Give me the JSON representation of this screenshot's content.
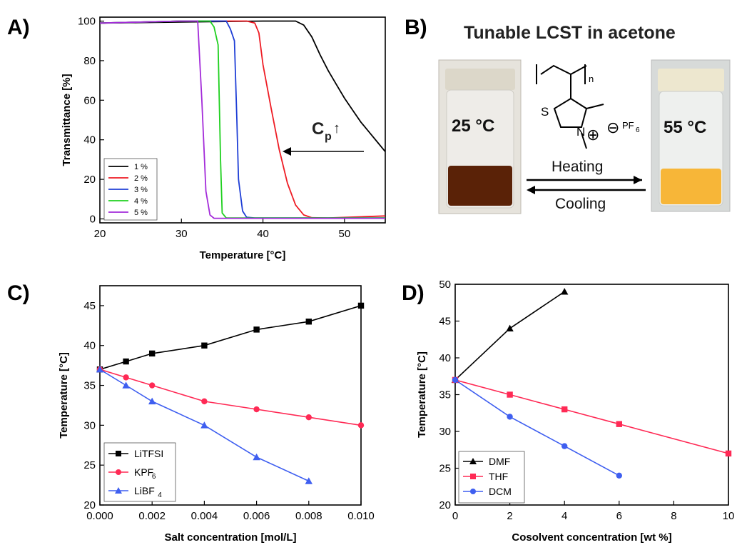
{
  "panels": {
    "a_label": "A)",
    "b_label": "B)",
    "c_label": "C)",
    "d_label": "D)"
  },
  "panel_b": {
    "title": "Tunable LCST in acetone",
    "vial_left_temp": "25 °C",
    "vial_right_temp": "55 °C",
    "heating": "Heating",
    "cooling": "Cooling",
    "chem_s": "S",
    "chem_n": "N",
    "chem_plus": "⊕",
    "chem_minus": "⊖",
    "chem_pf": "PF",
    "chem_pf_sub": "6",
    "chem_n_sub": "n",
    "vial_left_liquid": "#5a2207",
    "vial_right_liquid": "#f7b638"
  },
  "chart_data": [
    {
      "id": "A",
      "type": "line",
      "xlabel": "Temperature [°C]",
      "ylabel": "Transmittance [%]",
      "xlim": [
        20,
        55
      ],
      "ylim": [
        -2,
        102
      ],
      "xticks": [
        20,
        30,
        40,
        50
      ],
      "yticks": [
        0,
        20,
        40,
        60,
        80,
        100
      ],
      "annotation": {
        "text": "C",
        "sub": "p",
        "arrow": "↑"
      },
      "series": [
        {
          "name": "1 %",
          "color": "#000000",
          "points": [
            [
              20,
              99
            ],
            [
              30,
              99.5
            ],
            [
              40,
              100
            ],
            [
              44,
              100
            ],
            [
              45,
              98
            ],
            [
              46,
              92
            ],
            [
              47,
              83
            ],
            [
              48,
              75
            ],
            [
              49,
              68
            ],
            [
              50,
              61
            ],
            [
              51,
              55
            ],
            [
              52,
              49
            ],
            [
              53,
              44
            ],
            [
              54,
              39
            ],
            [
              55,
              34
            ]
          ]
        },
        {
          "name": "2 %",
          "color": "#ee1c24",
          "points": [
            [
              20,
              99
            ],
            [
              30,
              100
            ],
            [
              38,
              100
            ],
            [
              39,
              99
            ],
            [
              39.5,
              94
            ],
            [
              40,
              78
            ],
            [
              41,
              56
            ],
            [
              42,
              35
            ],
            [
              43,
              18
            ],
            [
              44,
              7
            ],
            [
              45,
              2
            ],
            [
              46,
              0.6
            ],
            [
              48,
              0.5
            ],
            [
              55,
              1.5
            ]
          ]
        },
        {
          "name": "3 %",
          "color": "#1f3fd6",
          "points": [
            [
              20,
              99
            ],
            [
              30,
              100
            ],
            [
              35.5,
              100
            ],
            [
              36,
              96
            ],
            [
              36.5,
              90
            ],
            [
              36.8,
              50
            ],
            [
              37,
              20
            ],
            [
              37.5,
              4
            ],
            [
              38,
              0.8
            ],
            [
              39,
              0.5
            ],
            [
              55,
              0.5
            ]
          ]
        },
        {
          "name": "4 %",
          "color": "#1fd01f",
          "points": [
            [
              20,
              99
            ],
            [
              30,
              100
            ],
            [
              33.5,
              100
            ],
            [
              34,
              97
            ],
            [
              34.5,
              88
            ],
            [
              34.8,
              30
            ],
            [
              35,
              3
            ],
            [
              35.5,
              0.5
            ],
            [
              55,
              0.5
            ]
          ]
        },
        {
          "name": "5 %",
          "color": "#a32bd9",
          "points": [
            [
              20,
              99
            ],
            [
              30,
              100
            ],
            [
              32,
              100
            ],
            [
              32.5,
              60
            ],
            [
              33,
              14
            ],
            [
              33.5,
              2
            ],
            [
              34,
              0.3
            ],
            [
              55,
              0.3
            ]
          ]
        }
      ]
    },
    {
      "id": "C",
      "type": "line",
      "xlabel": "Salt concentration [mol/L]",
      "ylabel": "Temperature [°C]",
      "xlim": [
        0,
        0.01
      ],
      "ylim": [
        20,
        47.5
      ],
      "xticks": [
        "0.000",
        "0.002",
        "0.004",
        "0.006",
        "0.008",
        "0.010"
      ],
      "yticks": [
        20,
        25,
        30,
        35,
        40,
        45
      ],
      "series": [
        {
          "name": "LiTFSI",
          "sub": "",
          "color": "#000000",
          "marker": "square",
          "x": [
            0,
            0.001,
            0.002,
            0.004,
            0.006,
            0.008,
            0.01
          ],
          "y": [
            37,
            38,
            39,
            40,
            42,
            43,
            45
          ]
        },
        {
          "name": "KPF",
          "sub": "6",
          "color": "#ff2a55",
          "marker": "circle",
          "x": [
            0,
            0.001,
            0.002,
            0.004,
            0.006,
            0.008,
            0.01
          ],
          "y": [
            37,
            36,
            35,
            33,
            32,
            31,
            30
          ]
        },
        {
          "name": "LiBF",
          "sub": "4",
          "color": "#3f5ff0",
          "marker": "triangle",
          "x": [
            0,
            0.001,
            0.002,
            0.004,
            0.006,
            0.008
          ],
          "y": [
            37,
            35,
            33,
            30,
            26,
            23
          ]
        }
      ]
    },
    {
      "id": "D",
      "type": "line",
      "xlabel": "Cosolvent concentration [wt %]",
      "ylabel": "Temperature [°C]",
      "xlim": [
        0,
        10
      ],
      "ylim": [
        20,
        50
      ],
      "xticks": [
        0,
        2,
        4,
        6,
        8,
        10
      ],
      "yticks": [
        20,
        25,
        30,
        35,
        40,
        45,
        50
      ],
      "series": [
        {
          "name": "DMF",
          "color": "#000000",
          "marker": "triangle",
          "x": [
            0,
            2,
            4
          ],
          "y": [
            37,
            44,
            49
          ]
        },
        {
          "name": "THF",
          "color": "#ff2a55",
          "marker": "square",
          "x": [
            0,
            2,
            4,
            6,
            10
          ],
          "y": [
            37,
            35,
            33,
            31,
            27
          ]
        },
        {
          "name": "DCM",
          "color": "#3f5ff0",
          "marker": "circle",
          "x": [
            0,
            2,
            4,
            6
          ],
          "y": [
            37,
            32,
            28,
            24
          ]
        }
      ]
    }
  ]
}
